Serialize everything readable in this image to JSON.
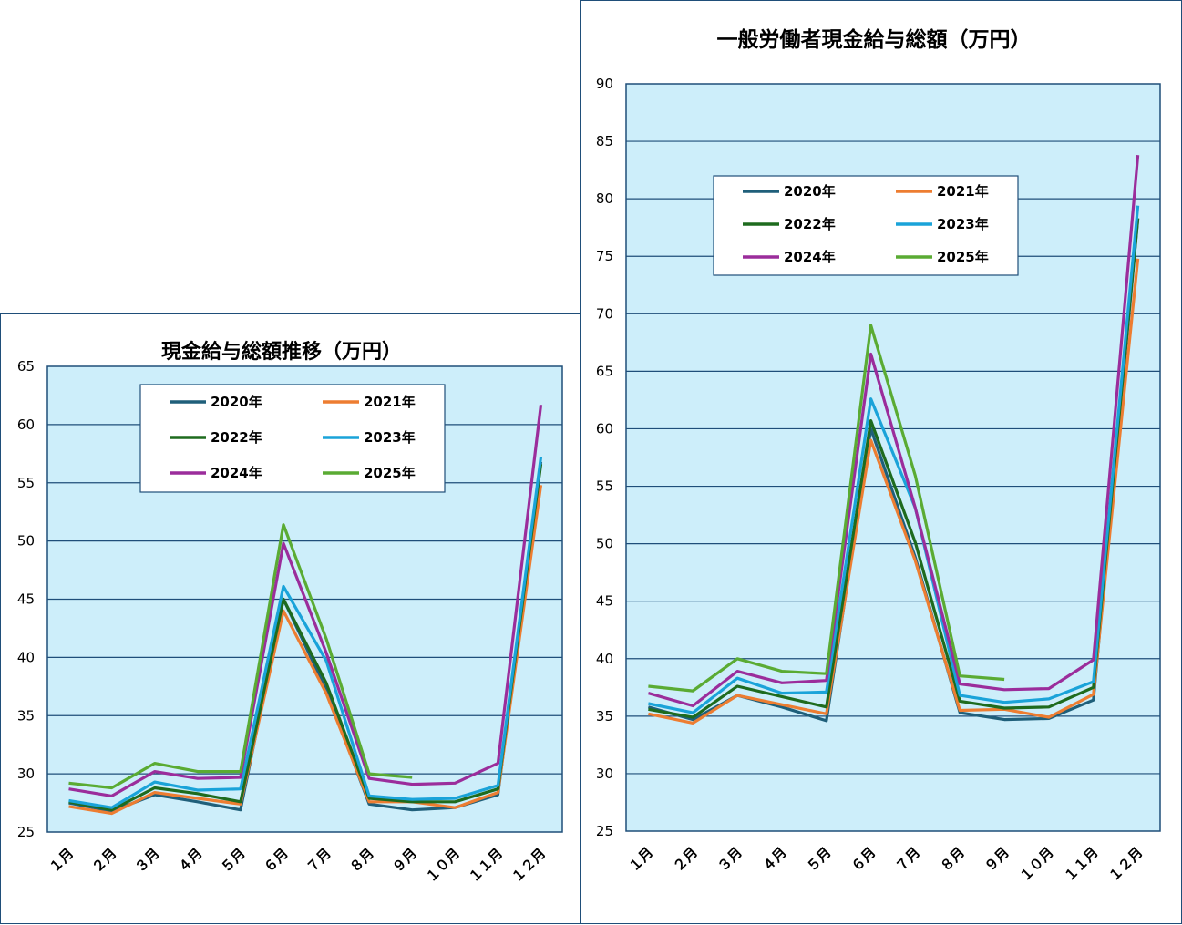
{
  "chart_data": [
    {
      "type": "line",
      "title": "現金給与総額推移（万円）",
      "categories": [
        "１月",
        "２月",
        "３月",
        "４月",
        "５月",
        "６月",
        "７月",
        "８月",
        "９月",
        "１０月",
        "１１月",
        "１２月"
      ],
      "ylim": [
        25,
        65
      ],
      "yticks": [
        25,
        30,
        35,
        40,
        45,
        50,
        55,
        60,
        65
      ],
      "grid": true,
      "legend_position": "top",
      "series": [
        {
          "name": "2020年",
          "color": "#1f5f7a",
          "values": [
            27.5,
            26.8,
            28.2,
            27.6,
            26.9,
            45.0,
            37.2,
            27.4,
            26.9,
            27.1,
            28.2,
            56.8
          ]
        },
        {
          "name": "2021年",
          "color": "#ed7d31",
          "values": [
            27.2,
            26.6,
            28.4,
            27.9,
            27.4,
            44.0,
            36.9,
            27.6,
            27.6,
            27.1,
            28.4,
            54.8
          ]
        },
        {
          "name": "2022年",
          "color": "#1e6b1e",
          "values": [
            27.6,
            26.9,
            28.8,
            28.3,
            27.6,
            45.0,
            37.8,
            27.9,
            27.6,
            27.6,
            28.7,
            56.6
          ]
        },
        {
          "name": "2023年",
          "color": "#1aa3d9",
          "values": [
            27.7,
            27.1,
            29.3,
            28.6,
            28.7,
            46.1,
            39.7,
            28.1,
            27.8,
            27.9,
            29.0,
            57.2
          ]
        },
        {
          "name": "2024年",
          "color": "#9b2d9b",
          "values": [
            28.7,
            28.1,
            30.2,
            29.6,
            29.7,
            49.8,
            40.4,
            29.6,
            29.1,
            29.2,
            30.9,
            61.7
          ]
        },
        {
          "name": "2025年",
          "color": "#5aab33",
          "values": [
            29.2,
            28.8,
            30.9,
            30.2,
            30.2,
            51.4,
            41.6,
            30.0,
            29.7,
            null,
            null,
            null
          ]
        }
      ]
    },
    {
      "type": "line",
      "title": "一般労働者現金給与総額（万円）",
      "categories": [
        "１月",
        "２月",
        "３月",
        "４月",
        "５月",
        "６月",
        "７月",
        "８月",
        "９月",
        "１０月",
        "１１月",
        "１２月"
      ],
      "ylim": [
        25,
        90
      ],
      "yticks": [
        25,
        30,
        35,
        40,
        45,
        50,
        55,
        60,
        65,
        70,
        75,
        80,
        85,
        90
      ],
      "grid": true,
      "legend_position": "top",
      "series": [
        {
          "name": "2020年",
          "color": "#1f5f7a",
          "values": [
            35.8,
            34.7,
            36.8,
            35.8,
            34.6,
            60.0,
            48.8,
            35.3,
            34.7,
            34.8,
            36.4,
            78.3
          ]
        },
        {
          "name": "2021年",
          "color": "#ed7d31",
          "values": [
            35.2,
            34.4,
            36.8,
            36.0,
            35.2,
            59.0,
            48.5,
            35.5,
            35.6,
            34.9,
            36.9,
            74.8
          ]
        },
        {
          "name": "2022年",
          "color": "#1e6b1e",
          "values": [
            35.6,
            34.9,
            37.6,
            36.7,
            35.8,
            60.7,
            50.1,
            36.3,
            35.7,
            35.8,
            37.5,
            78.3
          ]
        },
        {
          "name": "2023年",
          "color": "#1aa3d9",
          "values": [
            36.1,
            35.3,
            38.3,
            37.0,
            37.1,
            62.6,
            53.1,
            36.8,
            36.2,
            36.5,
            38.0,
            79.4
          ]
        },
        {
          "name": "2024年",
          "color": "#9b2d9b",
          "values": [
            37.0,
            35.9,
            38.9,
            37.9,
            38.1,
            66.5,
            53.1,
            37.8,
            37.3,
            37.4,
            39.9,
            83.8
          ]
        },
        {
          "name": "2025年",
          "color": "#5aab33",
          "values": [
            37.6,
            37.2,
            40.0,
            38.9,
            38.7,
            69.0,
            55.9,
            38.5,
            38.2,
            null,
            null,
            null
          ]
        }
      ]
    }
  ]
}
